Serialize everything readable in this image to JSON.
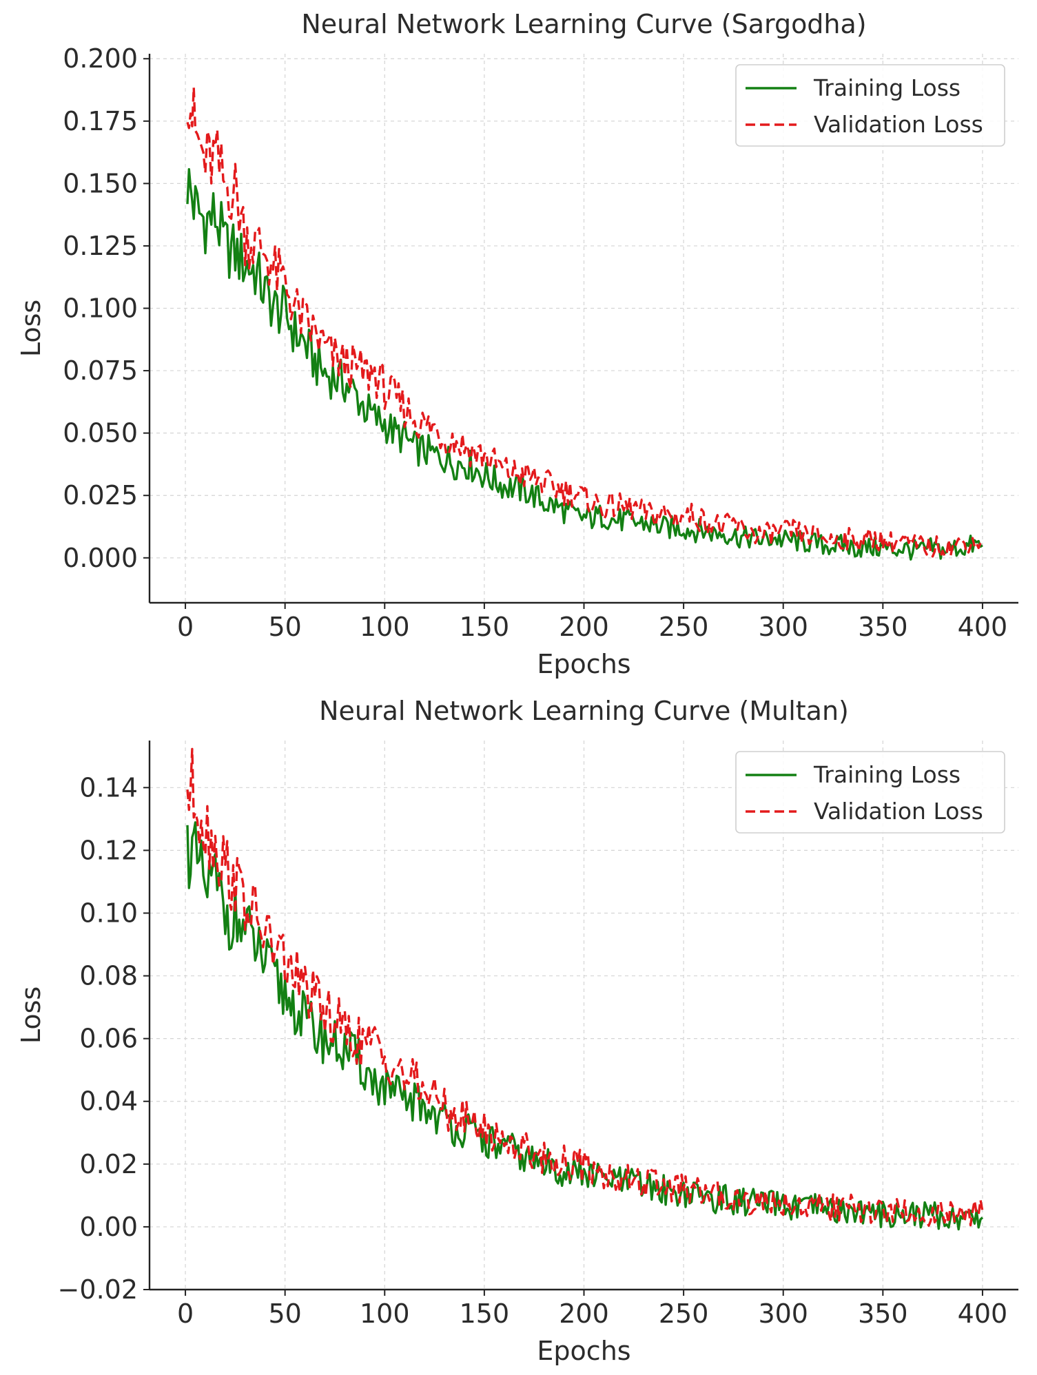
{
  "chart_data": [
    {
      "type": "line",
      "title": "Neural Network Learning Curve (Sargodha)",
      "xlabel": "Epochs",
      "ylabel": "Loss",
      "xlim": [
        -18,
        418
      ],
      "ylim": [
        -0.018,
        0.202
      ],
      "xticks": [
        0,
        50,
        100,
        150,
        200,
        250,
        300,
        350,
        400
      ],
      "xtick_labels": [
        "0",
        "50",
        "100",
        "150",
        "200",
        "250",
        "300",
        "350",
        "400"
      ],
      "yticks": [
        0.0,
        0.025,
        0.05,
        0.075,
        0.1,
        0.125,
        0.15,
        0.175,
        0.2
      ],
      "ytick_labels": [
        "0.000",
        "0.025",
        "0.050",
        "0.075",
        "0.100",
        "0.125",
        "0.150",
        "0.175",
        "0.200"
      ],
      "grid": true,
      "legend": "top-right",
      "x": [
        1,
        5,
        10,
        15,
        20,
        25,
        30,
        35,
        40,
        45,
        50,
        55,
        60,
        65,
        70,
        75,
        80,
        85,
        90,
        95,
        100,
        105,
        110,
        115,
        120,
        125,
        130,
        135,
        140,
        145,
        150,
        155,
        160,
        165,
        170,
        175,
        180,
        185,
        190,
        195,
        200,
        205,
        210,
        215,
        220,
        225,
        230,
        235,
        240,
        245,
        250,
        255,
        260,
        265,
        270,
        275,
        280,
        285,
        290,
        295,
        300,
        305,
        310,
        315,
        320,
        325,
        330,
        335,
        340,
        345,
        350,
        355,
        360,
        365,
        370,
        375,
        380,
        385,
        390,
        395,
        400
      ],
      "series": [
        {
          "name": "Training Loss",
          "color": "#138013",
          "style": "solid",
          "values": [
            0.151,
            0.14,
            0.135,
            0.137,
            0.125,
            0.122,
            0.118,
            0.115,
            0.106,
            0.1,
            0.098,
            0.09,
            0.086,
            0.078,
            0.074,
            0.072,
            0.07,
            0.066,
            0.06,
            0.056,
            0.054,
            0.05,
            0.048,
            0.044,
            0.043,
            0.041,
            0.04,
            0.038,
            0.038,
            0.036,
            0.033,
            0.031,
            0.029,
            0.028,
            0.027,
            0.025,
            0.022,
            0.021,
            0.019,
            0.017,
            0.016,
            0.016,
            0.017,
            0.015,
            0.015,
            0.014,
            0.014,
            0.013,
            0.012,
            0.012,
            0.012,
            0.011,
            0.011,
            0.01,
            0.01,
            0.009,
            0.008,
            0.008,
            0.007,
            0.008,
            0.007,
            0.007,
            0.006,
            0.006,
            0.005,
            0.005,
            0.005,
            0.004,
            0.004,
            0.004,
            0.004,
            0.003,
            0.004,
            0.003,
            0.003,
            0.004,
            0.003,
            0.004,
            0.004,
            0.005,
            0.005
          ]
        },
        {
          "name": "Validation Loss",
          "color": "#e31a1c",
          "style": "dashed",
          "values": [
            0.191,
            0.17,
            0.158,
            0.16,
            0.149,
            0.147,
            0.13,
            0.125,
            0.123,
            0.114,
            0.11,
            0.1,
            0.094,
            0.09,
            0.084,
            0.08,
            0.078,
            0.076,
            0.074,
            0.074,
            0.068,
            0.064,
            0.06,
            0.056,
            0.053,
            0.052,
            0.048,
            0.047,
            0.045,
            0.042,
            0.041,
            0.038,
            0.035,
            0.034,
            0.033,
            0.032,
            0.03,
            0.028,
            0.027,
            0.026,
            0.024,
            0.022,
            0.02,
            0.021,
            0.02,
            0.02,
            0.018,
            0.017,
            0.018,
            0.016,
            0.017,
            0.017,
            0.015,
            0.014,
            0.012,
            0.014,
            0.011,
            0.01,
            0.009,
            0.01,
            0.01,
            0.011,
            0.009,
            0.009,
            0.008,
            0.007,
            0.008,
            0.007,
            0.007,
            0.008,
            0.007,
            0.006,
            0.007,
            0.005,
            0.005,
            0.004,
            0.005,
            0.004,
            0.006,
            0.006,
            0.007
          ]
        }
      ]
    },
    {
      "type": "line",
      "title": "Neural Network Learning Curve (Multan)",
      "xlabel": "Epochs",
      "ylabel": "Loss",
      "xlim": [
        -18,
        418
      ],
      "ylim": [
        -0.02,
        0.155
      ],
      "xticks": [
        0,
        50,
        100,
        150,
        200,
        250,
        300,
        350,
        400
      ],
      "xtick_labels": [
        "0",
        "50",
        "100",
        "150",
        "200",
        "250",
        "300",
        "350",
        "400"
      ],
      "yticks": [
        -0.02,
        0.0,
        0.02,
        0.04,
        0.06,
        0.08,
        0.1,
        0.12,
        0.14
      ],
      "ytick_labels": [
        "−0.02",
        "0.00",
        "0.02",
        "0.04",
        "0.06",
        "0.08",
        "0.10",
        "0.12",
        "0.14"
      ],
      "grid": true,
      "legend": "top-right",
      "x": [
        1,
        5,
        10,
        15,
        20,
        25,
        30,
        35,
        40,
        45,
        50,
        55,
        60,
        65,
        70,
        75,
        80,
        85,
        90,
        95,
        100,
        105,
        110,
        115,
        120,
        125,
        130,
        135,
        140,
        145,
        150,
        155,
        160,
        165,
        170,
        175,
        180,
        185,
        190,
        195,
        200,
        205,
        210,
        215,
        220,
        225,
        230,
        235,
        240,
        245,
        250,
        255,
        260,
        265,
        270,
        275,
        280,
        285,
        290,
        295,
        300,
        305,
        310,
        315,
        320,
        325,
        330,
        335,
        340,
        345,
        350,
        355,
        360,
        365,
        370,
        375,
        380,
        385,
        390,
        395,
        400
      ],
      "series": [
        {
          "name": "Training Loss",
          "color": "#138013",
          "style": "solid",
          "values": [
            0.121,
            0.117,
            0.108,
            0.11,
            0.1,
            0.098,
            0.094,
            0.09,
            0.084,
            0.078,
            0.074,
            0.07,
            0.066,
            0.062,
            0.06,
            0.058,
            0.056,
            0.054,
            0.05,
            0.046,
            0.044,
            0.042,
            0.04,
            0.04,
            0.038,
            0.036,
            0.034,
            0.032,
            0.031,
            0.029,
            0.028,
            0.026,
            0.025,
            0.024,
            0.022,
            0.021,
            0.02,
            0.019,
            0.018,
            0.017,
            0.017,
            0.016,
            0.015,
            0.015,
            0.014,
            0.014,
            0.013,
            0.012,
            0.012,
            0.011,
            0.011,
            0.01,
            0.01,
            0.009,
            0.009,
            0.008,
            0.008,
            0.008,
            0.007,
            0.007,
            0.007,
            0.006,
            0.006,
            0.006,
            0.006,
            0.005,
            0.005,
            0.005,
            0.005,
            0.004,
            0.004,
            0.004,
            0.004,
            0.004,
            0.004,
            0.004,
            0.003,
            0.003,
            0.003,
            0.003,
            0.003
          ]
        },
        {
          "name": "Validation Loss",
          "color": "#e31a1c",
          "style": "dashed",
          "values": [
            0.14,
            0.138,
            0.128,
            0.122,
            0.115,
            0.11,
            0.104,
            0.098,
            0.094,
            0.088,
            0.085,
            0.08,
            0.076,
            0.072,
            0.068,
            0.066,
            0.062,
            0.06,
            0.058,
            0.058,
            0.054,
            0.052,
            0.048,
            0.046,
            0.044,
            0.041,
            0.038,
            0.036,
            0.034,
            0.033,
            0.031,
            0.029,
            0.028,
            0.026,
            0.025,
            0.024,
            0.022,
            0.021,
            0.021,
            0.02,
            0.019,
            0.018,
            0.017,
            0.016,
            0.015,
            0.015,
            0.014,
            0.014,
            0.013,
            0.012,
            0.012,
            0.011,
            0.011,
            0.01,
            0.01,
            0.009,
            0.009,
            0.008,
            0.008,
            0.008,
            0.008,
            0.007,
            0.007,
            0.007,
            0.006,
            0.006,
            0.006,
            0.006,
            0.005,
            0.005,
            0.005,
            0.005,
            0.005,
            0.004,
            0.004,
            0.004,
            0.004,
            0.004,
            0.004,
            0.004,
            0.005
          ]
        }
      ]
    }
  ]
}
